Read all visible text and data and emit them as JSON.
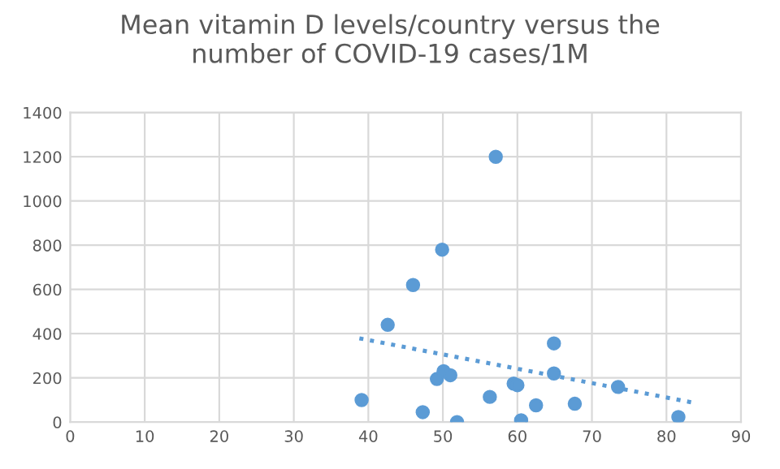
{
  "chart_data": {
    "type": "scatter",
    "title": "Mean vitamin D levels/country versus the\nnumber of COVID-19 cases/1M",
    "series": [
      {
        "color": "#5b9bd5",
        "marker": "circle",
        "x": [
          39.1,
          42.6,
          46.0,
          49.9,
          57.1,
          47.3,
          49.2,
          50.1,
          51.0,
          51.9,
          56.3,
          59.5,
          60.0,
          60.5,
          62.5,
          64.9,
          64.9,
          67.7,
          73.5,
          81.6
        ],
        "values": [
          100,
          440,
          620,
          780,
          1200,
          45,
          195,
          230,
          212,
          0,
          114,
          174,
          167,
          8,
          76,
          356,
          220,
          83,
          159,
          23
        ]
      },
      {
        "type": "line",
        "color": "#5b9bd5",
        "line_style": "dotted",
        "marker": "none",
        "x": [
          38.8,
          83.6
        ],
        "values": [
          379,
          88
        ]
      }
    ],
    "xlim": [
      0,
      90
    ],
    "xticks": [
      0,
      10,
      20,
      30,
      40,
      50,
      60,
      70,
      80,
      90
    ],
    "ylim": [
      0,
      1400
    ],
    "yticks": [
      0,
      200,
      400,
      600,
      800,
      1000,
      1200,
      1400
    ],
    "grid": true,
    "legend": false
  }
}
